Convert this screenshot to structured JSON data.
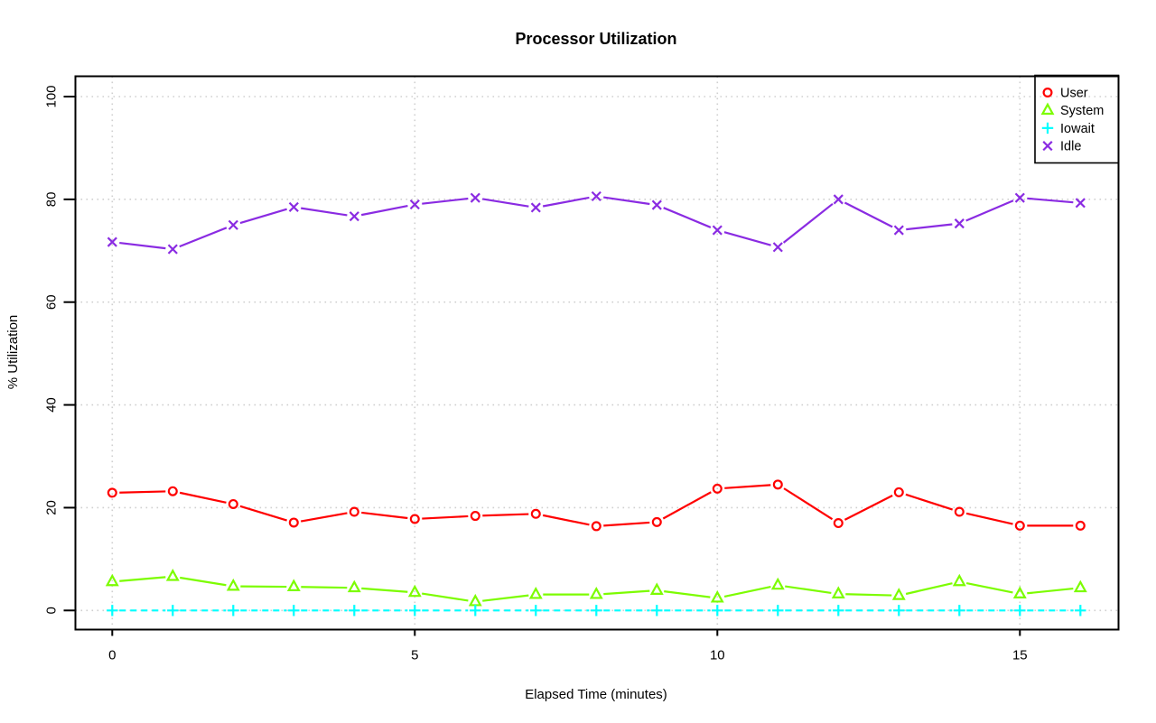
{
  "figure": {
    "background": "#FFFFFF",
    "axis_color": "#000000",
    "grid_color": "#CFCFCF",
    "grid_style": "dotted"
  },
  "chart_data": {
    "type": "line",
    "title": "Processor Utilization",
    "xlabel": "Elapsed Time (minutes)",
    "ylabel": "% Utilization",
    "x": [
      0,
      1,
      2,
      3,
      4,
      5,
      6,
      7,
      8,
      9,
      10,
      11,
      12,
      13,
      14,
      15,
      16
    ],
    "xlim": [
      0,
      16
    ],
    "ylim": [
      0,
      100
    ],
    "xticks": [
      0,
      5,
      10,
      15
    ],
    "yticks": [
      0,
      20,
      40,
      60,
      80,
      100
    ],
    "grid": "on",
    "legend": {
      "position": "top-right",
      "border": "#000000",
      "items": [
        "User",
        "System",
        "Iowait",
        "Idle"
      ]
    },
    "series": [
      {
        "name": "User",
        "color": "#FF0000",
        "marker": "circle",
        "line": "solid",
        "values": [
          22.9,
          23.2,
          20.7,
          17.1,
          19.2,
          17.8,
          18.4,
          18.8,
          16.4,
          17.2,
          23.7,
          24.5,
          17.0,
          23.0,
          19.2,
          16.5,
          16.5
        ]
      },
      {
        "name": "System",
        "color": "#7CFC00",
        "marker": "triangle",
        "line": "solid",
        "values": [
          5.6,
          6.6,
          4.7,
          4.6,
          4.4,
          3.5,
          1.7,
          3.1,
          3.1,
          3.9,
          2.4,
          4.9,
          3.2,
          2.9,
          5.6,
          3.2,
          4.4
        ]
      },
      {
        "name": "Iowait",
        "color": "#00FFFF",
        "marker": "plus",
        "line": "dashed",
        "values": [
          0,
          0,
          0,
          0,
          0,
          0,
          0,
          0,
          0,
          0,
          0,
          0,
          0,
          0,
          0,
          0,
          0
        ]
      },
      {
        "name": "Idle",
        "color": "#8A2BE2",
        "marker": "x",
        "line": "solid",
        "values": [
          71.7,
          70.3,
          75.0,
          78.5,
          76.7,
          79.0,
          80.3,
          78.4,
          80.6,
          78.9,
          74.0,
          70.7,
          80.0,
          74.0,
          75.3,
          80.3,
          79.3
        ]
      }
    ]
  }
}
